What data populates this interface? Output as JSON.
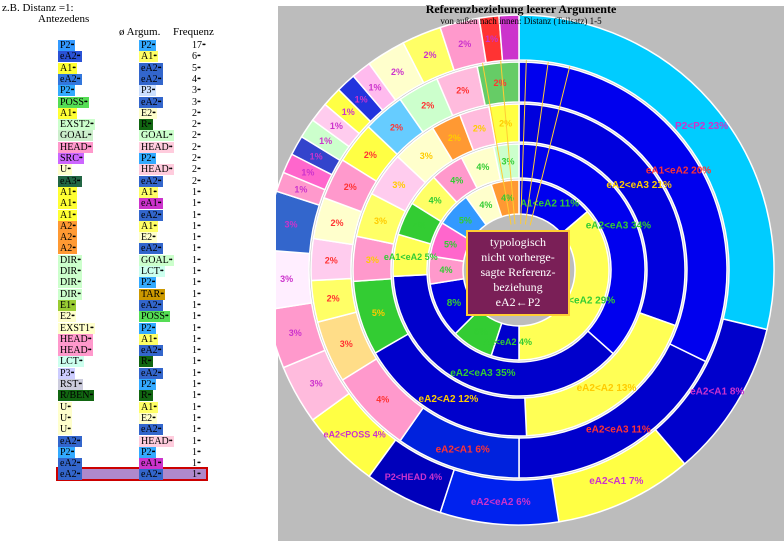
{
  "table": {
    "caption": "z.B. Distanz =1:",
    "headers": {
      "antecedens": "Antezedens",
      "argum": "ø Argum.",
      "freq": "Frequenz"
    },
    "rows": [
      {
        "a": "P2",
        "ac": "#3399ff",
        "b": "P2",
        "bc": "#33aaff",
        "f": "17"
      },
      {
        "a": "eA2",
        "ac": "#2a52d6",
        "b": "A1",
        "bc": "#ffff66",
        "f": "6"
      },
      {
        "a": "A1",
        "ac": "#ffff33",
        "b": "eA2",
        "bc": "#3366cc",
        "f": "5"
      },
      {
        "a": "eA2",
        "ac": "#3377dd",
        "b": "eA2",
        "bc": "#3366cc",
        "f": "4"
      },
      {
        "a": "P2",
        "ac": "#33aaff",
        "b": "P3",
        "bc": "#cce0ff",
        "f": "3"
      },
      {
        "a": "POSS",
        "ac": "#55dd55",
        "b": "eA2",
        "bc": "#3366cc",
        "f": "3"
      },
      {
        "a": "A1",
        "ac": "#ffff33",
        "b": "E2",
        "bc": "#ffffcc",
        "f": "2"
      },
      {
        "a": "EXST2",
        "ac": "#ccffcc",
        "b": "R",
        "bc": "#116611",
        "f": "2"
      },
      {
        "a": "GOAL",
        "ac": "#cceecc",
        "b": "GOAL",
        "bc": "#ccffcc",
        "f": "2"
      },
      {
        "a": "HEAD",
        "ac": "#ff99cc",
        "b": "HEAD",
        "bc": "#ffccdd",
        "f": "2"
      },
      {
        "a": "SRC",
        "ac": "#cc66ff",
        "b": "P2",
        "bc": "#33aaff",
        "f": "2"
      },
      {
        "a": "U",
        "ac": "#ffffcc",
        "b": "HEAD",
        "bc": "#ffccdd",
        "f": "2"
      },
      {
        "a": "eA3",
        "ac": "#226644",
        "b": "eA2",
        "bc": "#3366cc",
        "f": "2"
      },
      {
        "a": "A1",
        "ac": "#ffff33",
        "b": "A1",
        "bc": "#ffff66",
        "f": "1"
      },
      {
        "a": "A1",
        "ac": "#ffff33",
        "b": "eA1",
        "bc": "#cc33cc",
        "f": "1"
      },
      {
        "a": "A1",
        "ac": "#ffff33",
        "b": "eA2",
        "bc": "#3366cc",
        "f": "1"
      },
      {
        "a": "A2",
        "ac": "#ff9933",
        "b": "A1",
        "bc": "#ffff66",
        "f": "1"
      },
      {
        "a": "A2",
        "ac": "#ff9933",
        "b": "E2",
        "bc": "#ffffcc",
        "f": "1"
      },
      {
        "a": "A2",
        "ac": "#ff9933",
        "b": "eA2",
        "bc": "#3366cc",
        "f": "1"
      },
      {
        "a": "DIR",
        "ac": "#ccffcc",
        "b": "GOAL",
        "bc": "#ccffcc",
        "f": "1"
      },
      {
        "a": "DIR",
        "ac": "#ccffcc",
        "b": "LCT",
        "bc": "#ccffee",
        "f": "1"
      },
      {
        "a": "DIR",
        "ac": "#ccffcc",
        "b": "P2",
        "bc": "#33aaff",
        "f": "1"
      },
      {
        "a": "DIR",
        "ac": "#ccffcc",
        "b": "TAR",
        "bc": "#cc9900",
        "f": "1"
      },
      {
        "a": "E1",
        "ac": "#99cc33",
        "b": "eA2",
        "bc": "#3366cc",
        "f": "1"
      },
      {
        "a": "E2",
        "ac": "#ffffcc",
        "b": "POSS",
        "bc": "#55dd55",
        "f": "1"
      },
      {
        "a": "EXST1",
        "ac": "#ffffcc",
        "b": "P2",
        "bc": "#33aaff",
        "f": "1"
      },
      {
        "a": "HEAD",
        "ac": "#ff99cc",
        "b": "A1",
        "bc": "#ffff66",
        "f": "1"
      },
      {
        "a": "HEAD",
        "ac": "#ff99cc",
        "b": "eA2",
        "bc": "#3366cc",
        "f": "1"
      },
      {
        "a": "LCT",
        "ac": "#ccffee",
        "b": "R",
        "bc": "#116611",
        "f": "1"
      },
      {
        "a": "P3",
        "ac": "#ccccff",
        "b": "eA2",
        "bc": "#3366cc",
        "f": "1"
      },
      {
        "a": "RST",
        "ac": "#ccccdd",
        "b": "P2",
        "bc": "#33aaff",
        "f": "1"
      },
      {
        "a": "R/BEN",
        "ac": "#116611",
        "b": "R",
        "bc": "#116611",
        "f": "1"
      },
      {
        "a": "U",
        "ac": "#ffffcc",
        "b": "A1",
        "bc": "#ffff66",
        "f": "1"
      },
      {
        "a": "U",
        "ac": "#ffffcc",
        "b": "E2",
        "bc": "#ffffcc",
        "f": "1"
      },
      {
        "a": "U",
        "ac": "#ffffcc",
        "b": "eA2",
        "bc": "#3366cc",
        "f": "1"
      },
      {
        "a": "eA2",
        "ac": "#3366cc",
        "b": "HEAD",
        "bc": "#ffccdd",
        "f": "1"
      },
      {
        "a": "P2",
        "ac": "#33aaff",
        "b": "P2",
        "bc": "#33aaff",
        "f": "1"
      },
      {
        "a": "eA2",
        "ac": "#3366cc",
        "b": "eA1",
        "bc": "#cc33cc",
        "f": "1"
      },
      {
        "a": "eA2",
        "ac": "#3366cc",
        "b": "eA2",
        "bc": "#3366cc",
        "f": "1"
      }
    ]
  },
  "chart_data": {
    "type": "donut",
    "title": "Referenzbeziehung leerer Argumente",
    "subtitle": "von außen nach innen: Distanz (Teilsatz) 1-5",
    "center_label": "typologisch nicht vorhergesagte Referenz-beziehung eA2←P2",
    "center_lines": [
      "typologisch",
      "nicht vorherge-",
      "sagte Referenz-",
      "beziehung",
      "eA2←P2"
    ],
    "rings": [
      {
        "distance": 1,
        "segments": [
          {
            "label": "P2<P2 23%",
            "value": 23,
            "color": "#00ccff",
            "text_color": "#cc33cc"
          },
          {
            "label": "eA2<A1 8%",
            "value": 8,
            "color": "#0000cc",
            "text_color": "#cc33cc"
          },
          {
            "label": "eA2<A1 7%",
            "value": 7,
            "color": "#ffff44",
            "text_color": "#cc33cc"
          },
          {
            "label": "eA2<eA2 6%",
            "value": 6,
            "color": "#0022ee",
            "text_color": "#cc33cc"
          },
          {
            "label": "P2<HEAD 4%",
            "value": 4,
            "color": "#0000bb",
            "text_color": "#cc33cc"
          },
          {
            "label": "eA2<POSS 4%",
            "value": 4,
            "color": "#ffff44",
            "text_color": "#cc33cc"
          },
          {
            "label": "3%",
            "value": 3,
            "color": "#ffbbdd",
            "text_color": "#cc33cc"
          },
          {
            "label": "3%",
            "value": 3,
            "color": "#ff99cc",
            "text_color": "#cc33cc"
          },
          {
            "label": "3%",
            "value": 3,
            "color": "#ffeeff",
            "text_color": "#cc33cc"
          },
          {
            "label": "3%",
            "value": 3,
            "color": "#3366cc",
            "text_color": "#cc33cc"
          },
          {
            "label": "1%",
            "value": 1,
            "color": "#ff99cc",
            "text_color": "#cc33cc"
          },
          {
            "label": "1%",
            "value": 1,
            "color": "#ff66cc",
            "text_color": "#cc33cc"
          },
          {
            "label": "1%",
            "value": 1,
            "color": "#3344cc",
            "text_color": "#cc33cc"
          },
          {
            "label": "1%",
            "value": 1,
            "color": "#ccffcc",
            "text_color": "#cc33cc"
          },
          {
            "label": "1%",
            "value": 1,
            "color": "#ffccee",
            "text_color": "#cc33cc"
          },
          {
            "label": "1%",
            "value": 1,
            "color": "#ffff44",
            "text_color": "#cc33cc"
          },
          {
            "label": "1%",
            "value": 1,
            "color": "#2233dd",
            "text_color": "#cc33cc"
          },
          {
            "label": "1%",
            "value": 1,
            "color": "#ffbbee",
            "text_color": "#cc33cc"
          },
          {
            "label": "2%",
            "value": 2,
            "color": "#ffffcc",
            "text_color": "#cc33cc"
          },
          {
            "label": "2%",
            "value": 2,
            "color": "#ffff66",
            "text_color": "#cc33cc"
          },
          {
            "label": "2%",
            "value": 2,
            "color": "#ff99cc",
            "text_color": "#cc33cc"
          },
          {
            "label": "1%",
            "value": 1,
            "color": "#ff3333",
            "text_color": "#cc33cc"
          },
          {
            "label": "1%",
            "value": 1,
            "color": "#cc33cc",
            "text_color": "#cc33cc"
          }
        ]
      },
      {
        "distance": 2,
        "segments": [
          {
            "label": "eA1<eA2 20%",
            "value": 20,
            "color": "#0000ee",
            "text_color": "#ff3333"
          },
          {
            "label": "eA2<eA3 11%",
            "value": 11,
            "color": "#0000cc",
            "text_color": "#ff3333"
          },
          {
            "label": "eA2<A1 6%",
            "value": 6,
            "color": "#0022dd",
            "text_color": "#ff3333"
          },
          {
            "label": "4%",
            "value": 4,
            "color": "#ff99cc",
            "text_color": "#ff3333"
          },
          {
            "label": "3%",
            "value": 3,
            "color": "#ffdd88",
            "text_color": "#ff3333"
          },
          {
            "label": "2%",
            "value": 2,
            "color": "#ffff66",
            "text_color": "#ff3333"
          },
          {
            "label": "2%",
            "value": 2,
            "color": "#ffccee",
            "text_color": "#ff3333"
          },
          {
            "label": "2%",
            "value": 2,
            "color": "#ffffcc",
            "text_color": "#ff3333"
          },
          {
            "label": "2%",
            "value": 2,
            "color": "#ff99cc",
            "text_color": "#ff3333"
          },
          {
            "label": "2%",
            "value": 2,
            "color": "#ffff44",
            "text_color": "#ff3333"
          },
          {
            "label": "2%",
            "value": 2,
            "color": "#66ccff",
            "text_color": "#ff3333"
          },
          {
            "label": "2%",
            "value": 2,
            "color": "#ccffcc",
            "text_color": "#ff3333"
          },
          {
            "label": "2%",
            "value": 2,
            "color": "#ffbbdd",
            "text_color": "#ff3333"
          },
          {
            "label": "2%",
            "value": 2,
            "color": "#66cc66",
            "text_color": "#ff3333"
          }
        ]
      },
      {
        "distance": 3,
        "segments": [
          {
            "label": "eA2<eA3 21%",
            "value": 21,
            "color": "#0000dd",
            "text_color": "#ffcc00"
          },
          {
            "label": "eA2<A2 13%",
            "value": 13,
            "color": "#ffff55",
            "text_color": "#ffcc00"
          },
          {
            "label": "eA2<A2 12%",
            "value": 12,
            "color": "#0000cc",
            "text_color": "#ffcc00"
          },
          {
            "label": "5%",
            "value": 5,
            "color": "#33cc33",
            "text_color": "#ffcc00"
          },
          {
            "label": "3%",
            "value": 3,
            "color": "#ff99cc",
            "text_color": "#ffcc00"
          },
          {
            "label": "3%",
            "value": 3,
            "color": "#ffff66",
            "text_color": "#ffcc00"
          },
          {
            "label": "3%",
            "value": 3,
            "color": "#ffccee",
            "text_color": "#ffcc00"
          },
          {
            "label": "3%",
            "value": 3,
            "color": "#ffffcc",
            "text_color": "#ffcc00"
          },
          {
            "label": "2%",
            "value": 2,
            "color": "#ff9933",
            "text_color": "#ffcc00"
          },
          {
            "label": "2%",
            "value": 2,
            "color": "#ffbbdd",
            "text_color": "#ffcc00"
          },
          {
            "label": "2%",
            "value": 2,
            "color": "#ffff44",
            "text_color": "#ffcc00"
          }
        ]
      },
      {
        "distance": 4,
        "segments": [
          {
            "label": "eA2<eA3 34%",
            "value": 34,
            "color": "#0000ee",
            "text_color": "#33cc33"
          },
          {
            "label": "eA2<eA3 35%",
            "value": 35,
            "color": "#0000cc",
            "text_color": "#33cc33"
          },
          {
            "label": "eA1<eA2 5%",
            "value": 5,
            "color": "#ffff55",
            "text_color": "#33cc33"
          },
          {
            "label": "4%",
            "value": 4,
            "color": "#33cc33",
            "text_color": "#33cc33"
          },
          {
            "label": "4%",
            "value": 4,
            "color": "#ffff66",
            "text_color": "#33cc33"
          },
          {
            "label": "4%",
            "value": 4,
            "color": "#ff99cc",
            "text_color": "#33cc33"
          },
          {
            "label": "4%",
            "value": 4,
            "color": "#ffffcc",
            "text_color": "#33cc33"
          },
          {
            "label": "3%",
            "value": 3,
            "color": "#ccffcc",
            "text_color": "#33cc33"
          }
        ]
      },
      {
        "distance": 5,
        "segments": [
          {
            "label": "A1<eA2 11%",
            "value": 11,
            "color": "#0000ee",
            "text_color": "#33cc33"
          },
          {
            "label": "A1<eA2 29%",
            "value": 29,
            "color": "#ffff55",
            "text_color": "#33cc33"
          },
          {
            "label": "A1<eA2 4%",
            "value": 4,
            "color": "#0000cc",
            "text_color": "#33cc33"
          },
          {
            "label": "6%",
            "value": 6,
            "color": "#33cc33",
            "text_color": "#33cc33"
          },
          {
            "label": "8%",
            "value": 8,
            "color": "#0000dd",
            "text_color": "#33cc33"
          },
          {
            "label": "4%",
            "value": 4,
            "color": "#ff99cc",
            "text_color": "#33cc33"
          },
          {
            "label": "5%",
            "value": 5,
            "color": "#ff66cc",
            "text_color": "#33cc33"
          },
          {
            "label": "5%",
            "value": 5,
            "color": "#3399ff",
            "text_color": "#33cc33"
          },
          {
            "label": "4%",
            "value": 4,
            "color": "#ffffcc",
            "text_color": "#33cc33"
          },
          {
            "label": "4%",
            "value": 4,
            "color": "#ff9933",
            "text_color": "#33cc33"
          }
        ]
      }
    ]
  }
}
